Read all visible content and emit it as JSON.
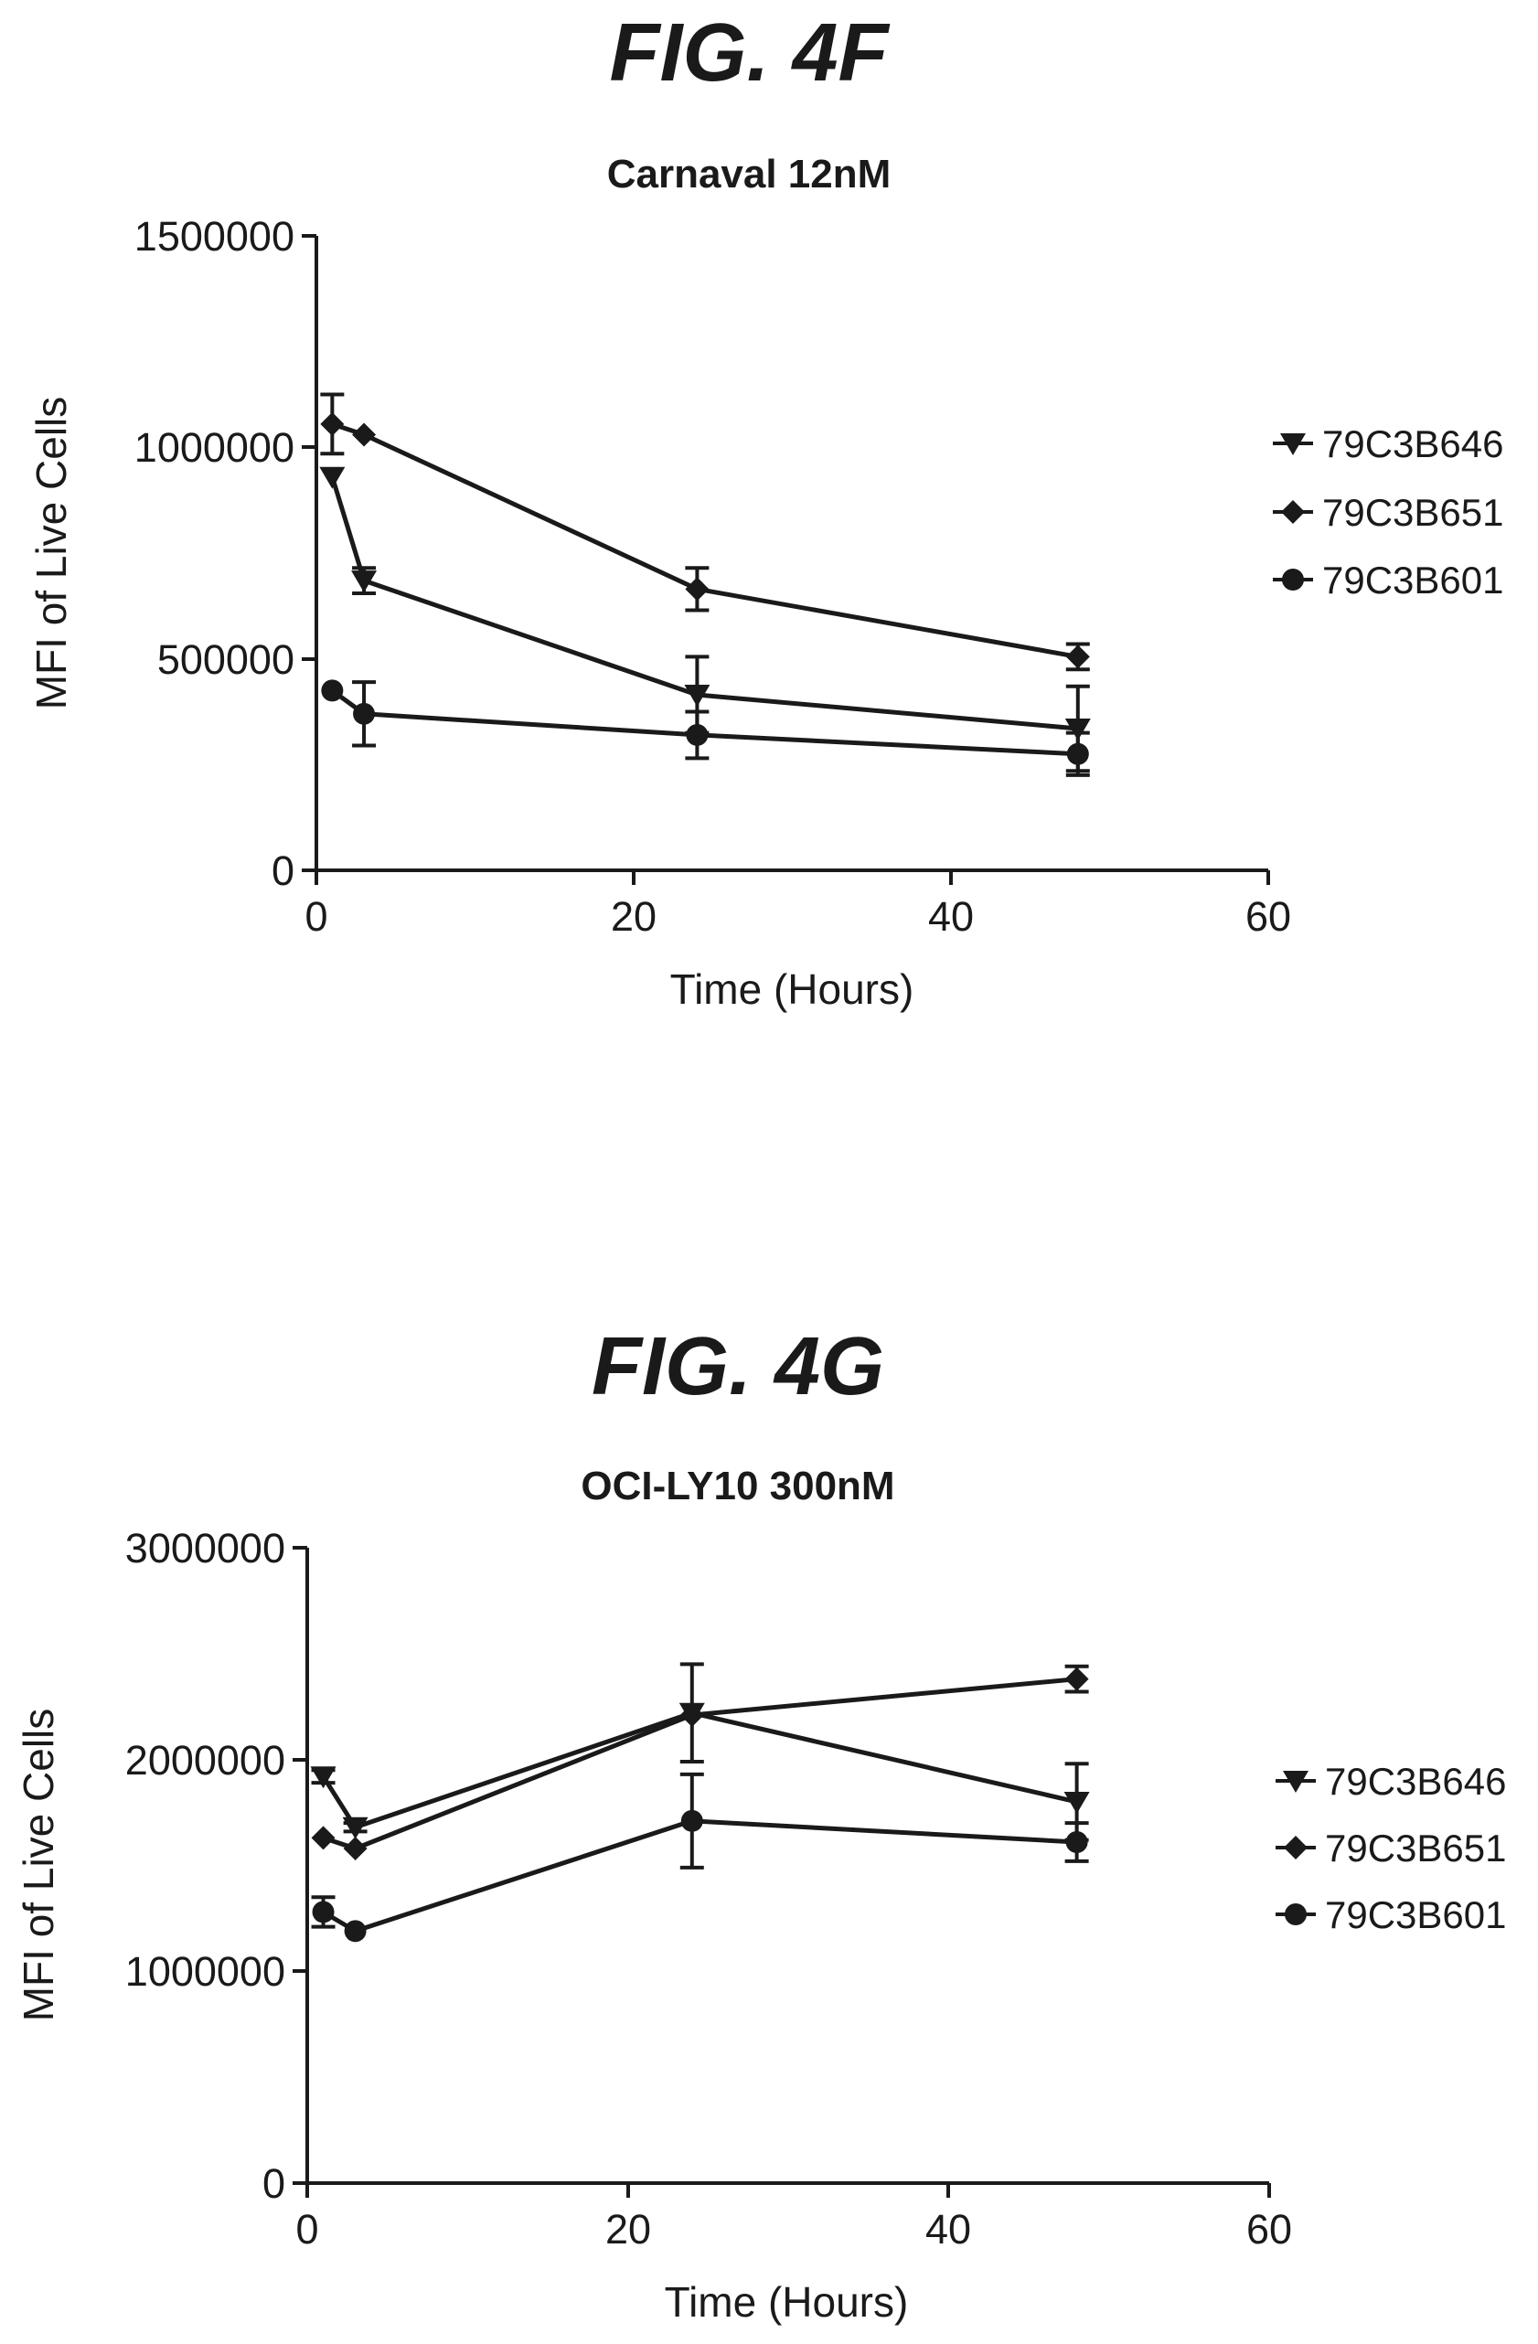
{
  "colors": {
    "ink": "#1a1a1a",
    "background": "#ffffff"
  },
  "chart_data": [
    {
      "type": "line",
      "figure_label": "FIG. 4F",
      "title": "Carnaval 12nM",
      "xlabel": "Time (Hours)",
      "ylabel": "MFI of Live Cells",
      "xlim": [
        0,
        60
      ],
      "ylim": [
        0,
        1500000
      ],
      "x_ticks": [
        0,
        20,
        40,
        60
      ],
      "y_ticks": [
        0,
        500000,
        1000000,
        1500000
      ],
      "grid": false,
      "legend_position": "right",
      "error_bars": true,
      "series": [
        {
          "name": "79C3B646",
          "marker": "triangle-down",
          "x": [
            1,
            3,
            24,
            48
          ],
          "y": [
            930000,
            685000,
            415000,
            335000
          ],
          "err": [
            0,
            30000,
            90000,
            100000
          ]
        },
        {
          "name": "79C3B651",
          "marker": "diamond",
          "x": [
            1,
            3,
            24,
            48
          ],
          "y": [
            1055000,
            1030000,
            665000,
            505000
          ],
          "err": [
            70000,
            0,
            50000,
            30000
          ]
        },
        {
          "name": "79C3B601",
          "marker": "circle",
          "x": [
            1,
            3,
            24,
            48
          ],
          "y": [
            425000,
            370000,
            320000,
            275000
          ],
          "err": [
            0,
            75000,
            55000,
            50000
          ]
        }
      ]
    },
    {
      "type": "line",
      "figure_label": "FIG. 4G",
      "title": "OCI-LY10 300nM",
      "xlabel": "Time (Hours)",
      "ylabel": "MFI of Live Cells",
      "xlim": [
        0,
        60
      ],
      "ylim": [
        0,
        3000000
      ],
      "x_ticks": [
        0,
        20,
        40,
        60
      ],
      "y_ticks": [
        0,
        1000000,
        2000000,
        3000000
      ],
      "grid": false,
      "legend_position": "right",
      "error_bars": true,
      "series": [
        {
          "name": "79C3B646",
          "marker": "triangle-down",
          "x": [
            1,
            3,
            24,
            48
          ],
          "y": [
            1920000,
            1680000,
            2220000,
            1800000
          ],
          "err": [
            30000,
            20000,
            230000,
            180000
          ]
        },
        {
          "name": "79C3B651",
          "marker": "diamond",
          "x": [
            1,
            3,
            24,
            48
          ],
          "y": [
            1630000,
            1580000,
            2210000,
            2380000
          ],
          "err": [
            0,
            0,
            0,
            60000
          ]
        },
        {
          "name": "79C3B601",
          "marker": "circle",
          "x": [
            1,
            3,
            24,
            48
          ],
          "y": [
            1280000,
            1190000,
            1710000,
            1610000
          ],
          "err": [
            70000,
            0,
            220000,
            90000
          ]
        }
      ]
    }
  ]
}
